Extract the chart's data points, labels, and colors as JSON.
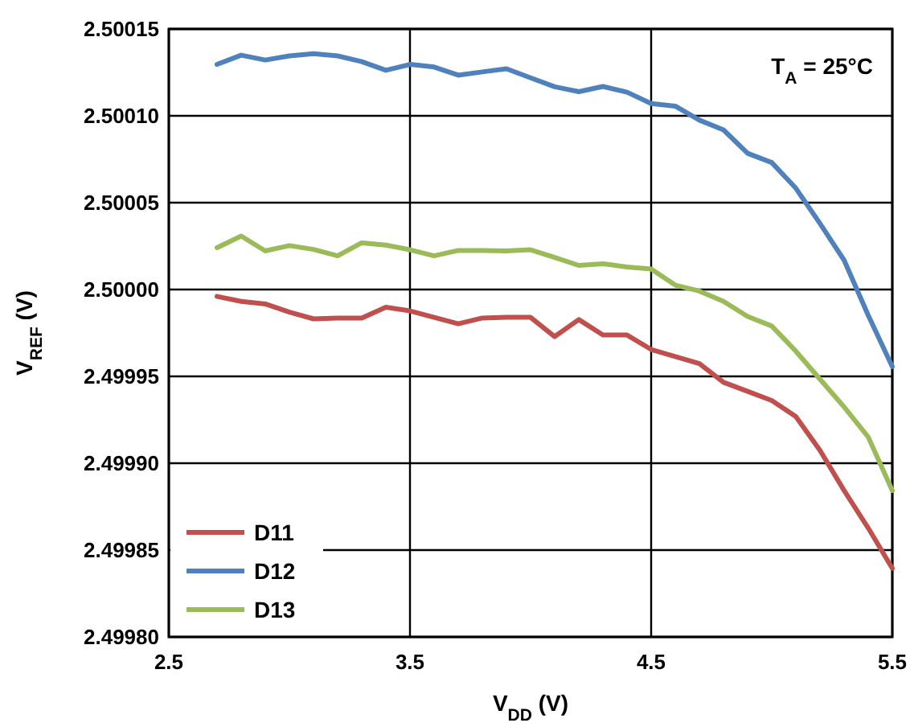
{
  "chart_data": {
    "type": "line",
    "xlabel": "V$_{DD}$ (V)",
    "ylabel": "V$_{REF}$ (V)",
    "annotations": [
      "T$_{A}$ = 25°C"
    ],
    "x": [
      2.7,
      2.8,
      2.9,
      3.0,
      3.1,
      3.2,
      3.3,
      3.4,
      3.5,
      3.6,
      3.7,
      3.8,
      3.9,
      4.0,
      4.1,
      4.2,
      4.3,
      4.4,
      4.5,
      4.6,
      4.7,
      4.8,
      4.9,
      5.0,
      5.1,
      5.2,
      5.3,
      5.4,
      5.5
    ],
    "series": [
      {
        "name": "D11",
        "color": "#c0504d",
        "values": [
          2.499996,
          2.4999932,
          2.4999917,
          2.499987,
          2.4999831,
          2.4999836,
          2.4999836,
          2.4999898,
          2.4999877,
          2.499984,
          2.4999803,
          2.4999836,
          2.499984,
          2.499984,
          2.4999729,
          2.4999827,
          2.4999738,
          2.4999738,
          2.4999655,
          2.4999614,
          2.4999574,
          2.4999466,
          2.4999414,
          2.4999361,
          2.4999269,
          2.4999074,
          2.4998843,
          2.4998627,
          2.4998395
        ]
      },
      {
        "name": "D12",
        "color": "#4f81bd",
        "values": [
          2.5001296,
          2.5001349,
          2.5001321,
          2.5001345,
          2.5001358,
          2.5001345,
          2.5001312,
          2.5001262,
          2.5001296,
          2.5001281,
          2.5001234,
          2.5001253,
          2.5001271,
          2.5001219,
          2.5001167,
          2.5001139,
          2.5001169,
          2.5001136,
          2.5001071,
          2.5001056,
          2.5000975,
          2.5000919,
          2.5000784,
          2.5000731,
          2.5000583,
          2.500038,
          2.5000169,
          2.4999852,
          2.4999556
        ]
      },
      {
        "name": "D13",
        "color": "#9bbb59",
        "values": [
          2.5000241,
          2.5000308,
          2.5000222,
          2.5000253,
          2.5000231,
          2.5000194,
          2.5000269,
          2.5000256,
          2.5000229,
          2.5000194,
          2.5000225,
          2.5000225,
          2.5000222,
          2.5000229,
          2.5000185,
          2.5000139,
          2.5000148,
          2.500013,
          2.5000118,
          2.5000025,
          2.4999991,
          2.4999932,
          2.4999845,
          2.499979,
          2.4999645,
          2.4999484,
          2.4999324,
          2.4999151,
          2.4998843
        ]
      }
    ],
    "xlim": [
      2.5,
      5.5
    ],
    "xticks": [
      2.5,
      3.5,
      4.5,
      5.5
    ],
    "ylim": [
      2.4998,
      2.50015
    ],
    "yticks": [
      {
        "value": 2.4998,
        "label": "2.49980"
      },
      {
        "value": 2.49985,
        "label": "2.49985"
      },
      {
        "value": 2.4999,
        "label": "2.49990"
      },
      {
        "value": 2.49995,
        "label": "2.49995"
      },
      {
        "value": 2.5,
        "label": "2.50000"
      },
      {
        "value": 2.50005,
        "label": "2.50005"
      },
      {
        "value": 2.5001,
        "label": "2.50010"
      },
      {
        "value": 2.50015,
        "label": "2.50015"
      }
    ],
    "grid": true,
    "legend": "bottom left",
    "marker": "none",
    "line_style": "solid"
  }
}
